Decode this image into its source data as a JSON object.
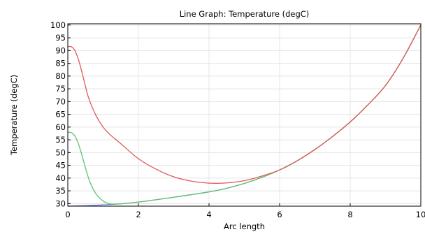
{
  "chart_data": {
    "type": "line",
    "title": "Line Graph: Temperature (degC)",
    "xlabel": "Arc length",
    "ylabel": "Temperature (degC)",
    "xlim": [
      0,
      10
    ],
    "ylim": [
      29,
      100.5
    ],
    "x_ticks": [
      0,
      2,
      4,
      6,
      8,
      10
    ],
    "y_ticks": [
      30,
      35,
      40,
      45,
      50,
      55,
      60,
      65,
      70,
      75,
      80,
      85,
      90,
      95,
      100
    ],
    "grid": true,
    "colors": {
      "axes": "#000000",
      "grid": "#e4e4e4"
    },
    "series": [
      {
        "color": "#6e84e8",
        "x": [
          0,
          0.5,
          1.0,
          1.5,
          2.0,
          2.5,
          3.0,
          3.5,
          4.0,
          4.5,
          5.0,
          5.5,
          6.0,
          6.5,
          7.0,
          7.5,
          8.0,
          8.5,
          9.0,
          9.5,
          10.0
        ],
        "y": [
          29.0,
          29.2,
          29.5,
          29.9,
          30.6,
          31.5,
          32.5,
          33.5,
          34.6,
          36.0,
          37.9,
          40.3,
          43.2,
          46.8,
          51.2,
          56.3,
          62.0,
          68.7,
          76.3,
          87.0,
          100.0
        ]
      },
      {
        "color": "#5ec46e",
        "x": [
          0,
          0.1,
          0.2,
          0.3,
          0.4,
          0.5,
          0.6,
          0.7,
          0.8,
          0.9,
          1.0,
          1.1,
          1.2,
          1.3,
          1.5,
          2.0,
          2.5,
          3.0,
          3.5,
          4.0,
          4.5,
          5.0,
          5.5,
          6.0,
          6.5,
          7.0,
          7.5,
          8.0,
          8.5,
          9.0,
          9.5,
          10.0
        ],
        "y": [
          58.0,
          57.8,
          56.5,
          53.5,
          49.0,
          44.0,
          39.5,
          36.2,
          33.8,
          32.2,
          31.0,
          30.3,
          29.9,
          29.8,
          29.9,
          30.6,
          31.5,
          32.5,
          33.5,
          34.6,
          36.0,
          37.9,
          40.3,
          43.2,
          46.8,
          51.2,
          56.3,
          62.0,
          68.7,
          76.3,
          87.0,
          100.0
        ]
      },
      {
        "color": "#dd5a56",
        "x": [
          0,
          0.1,
          0.2,
          0.3,
          0.4,
          0.5,
          0.6,
          0.8,
          1.0,
          1.2,
          1.5,
          2.0,
          2.5,
          3.0,
          3.5,
          4.0,
          4.5,
          5.0,
          5.5,
          6.0,
          6.5,
          7.0,
          7.5,
          8.0,
          8.5,
          9.0,
          9.5,
          10.0
        ],
        "y": [
          91.5,
          91.5,
          90.0,
          86.5,
          81.5,
          76.0,
          71.0,
          64.5,
          60.0,
          57.0,
          53.5,
          47.6,
          43.5,
          40.5,
          38.8,
          38.0,
          38.1,
          39.0,
          40.8,
          43.2,
          46.8,
          51.2,
          56.3,
          62.0,
          68.7,
          76.3,
          87.0,
          100.0
        ]
      }
    ]
  }
}
